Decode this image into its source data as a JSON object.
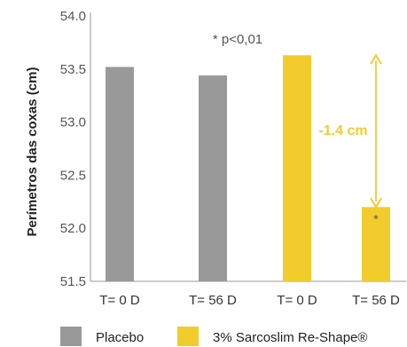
{
  "chart_data": {
    "type": "bar",
    "ylabel": "Perímetros das coxas (cm)",
    "ylim": [
      51.5,
      54.0
    ],
    "yticks": [
      "51.5",
      "52.0",
      "52.5",
      "53.0",
      "53.5",
      "54.0"
    ],
    "categories": [
      "T= 0 D",
      "T= 56 D",
      "T= 0 D",
      "T= 56 D"
    ],
    "values": [
      53.52,
      53.44,
      53.63,
      52.2
    ],
    "bar_series": [
      0,
      0,
      1,
      1
    ],
    "series": [
      {
        "name": "Placebo",
        "color": "#999999"
      },
      {
        "name": "3% Sarcoslim Re-Shape®",
        "color": "#F2CC2C"
      }
    ],
    "annotations": {
      "significance": "* p<0,01",
      "difference": "-1.4 cm",
      "difference_color": "#F2CC2C",
      "bar_marker": "*",
      "arrow_from": 53.63,
      "arrow_to": 52.2
    },
    "grid": false,
    "legend_position": "bottom"
  }
}
